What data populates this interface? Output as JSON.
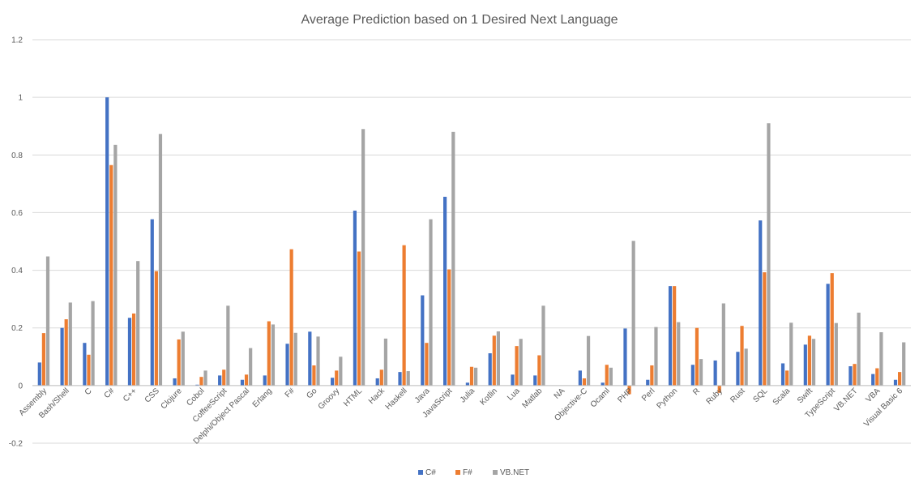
{
  "chart_data": {
    "type": "bar",
    "title": "Average Prediction based on 1 Desired Next Language",
    "xlabel": "",
    "ylabel": "",
    "ylim": [
      -0.2,
      1.2
    ],
    "yticks": [
      "-0.2",
      "0",
      "0.2",
      "0.4",
      "0.6",
      "0.8",
      "1",
      "1.2"
    ],
    "grid": true,
    "legend_position": "bottom",
    "categories": [
      "Assembly",
      "Bash/Shell",
      "C",
      "C#",
      "C++",
      "CSS",
      "Clojure",
      "Cobol",
      "CoffeeScript",
      "Delphi/Object Pascal",
      "Erlang",
      "F#",
      "Go",
      "Groovy",
      "HTML",
      "Hack",
      "Haskell",
      "Java",
      "JavaScript",
      "Julia",
      "Kotlin",
      "Lua",
      "Matlab",
      "NA",
      "Objective-C",
      "Ocaml",
      "PHP",
      "Perl",
      "Python",
      "R",
      "Ruby",
      "Rust",
      "SQL",
      "Scala",
      "Swift",
      "TypeScript",
      "VB.NET",
      "VBA",
      "Visual Basic 6"
    ],
    "series": [
      {
        "name": "C#",
        "color": "#4472C4",
        "values": [
          0.08,
          0.2,
          0.148,
          1.0,
          0.235,
          0.577,
          0.025,
          0.003,
          0.035,
          0.02,
          0.035,
          0.145,
          0.187,
          0.027,
          0.607,
          0.025,
          0.047,
          0.313,
          0.655,
          0.01,
          0.112,
          0.038,
          0.035,
          0.0,
          0.052,
          0.01,
          0.198,
          0.02,
          0.345,
          0.072,
          0.087,
          0.117,
          0.573,
          0.077,
          0.142,
          0.353,
          0.067,
          0.04,
          0.02
        ]
      },
      {
        "name": "F#",
        "color": "#ED7D31",
        "values": [
          0.182,
          0.23,
          0.107,
          0.765,
          0.25,
          0.397,
          0.16,
          0.03,
          0.055,
          0.038,
          0.223,
          0.473,
          0.07,
          0.052,
          0.465,
          0.055,
          0.487,
          0.148,
          0.403,
          0.065,
          0.173,
          0.137,
          0.105,
          0.0,
          0.025,
          0.072,
          -0.03,
          0.07,
          0.345,
          0.2,
          -0.025,
          0.207,
          0.393,
          0.052,
          0.173,
          0.39,
          0.075,
          0.06,
          0.047
        ]
      },
      {
        "name": "VB.NET",
        "color": "#A5A5A5",
        "values": [
          0.448,
          0.288,
          0.293,
          0.835,
          0.432,
          0.873,
          0.187,
          0.052,
          0.277,
          0.13,
          0.212,
          0.183,
          0.17,
          0.1,
          0.89,
          0.163,
          0.05,
          0.577,
          0.88,
          0.062,
          0.188,
          0.162,
          0.277,
          0.0,
          0.172,
          0.062,
          0.502,
          0.203,
          0.22,
          0.092,
          0.285,
          0.128,
          0.91,
          0.218,
          0.162,
          0.217,
          0.253,
          0.185,
          0.15
        ]
      }
    ]
  }
}
